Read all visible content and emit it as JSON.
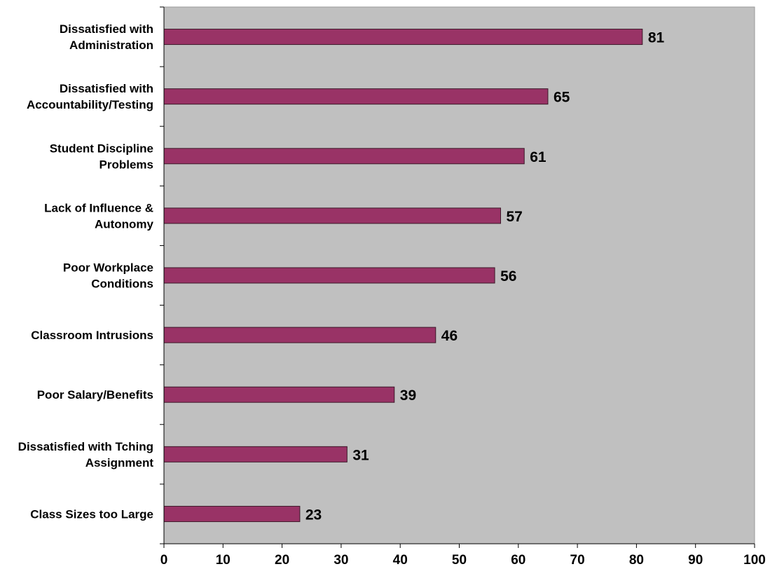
{
  "chart_data": {
    "type": "bar",
    "orientation": "horizontal",
    "categories": [
      [
        "Dissatisfied with",
        "Administration"
      ],
      [
        "Dissatisfied with",
        "Accountability/Testing"
      ],
      [
        "Student Discipline",
        "Problems"
      ],
      [
        "Lack of Influence &",
        "Autonomy"
      ],
      [
        "Poor Workplace",
        "Conditions"
      ],
      [
        "Classroom Intrusions"
      ],
      [
        "Poor Salary/Benefits"
      ],
      [
        "Dissatisfied with Tching",
        "Assignment"
      ],
      [
        "Class Sizes too Large"
      ]
    ],
    "values": [
      81,
      65,
      61,
      57,
      56,
      46,
      39,
      31,
      23
    ],
    "data_labels": [
      "81",
      "65",
      "61",
      "57",
      "56",
      "46",
      "39",
      "31",
      "23"
    ],
    "xlim": [
      0,
      100
    ],
    "x_ticks": [
      0,
      10,
      20,
      30,
      40,
      50,
      60,
      70,
      80,
      90,
      100
    ],
    "grid": false,
    "title": "",
    "xlabel": "",
    "ylabel": "",
    "colors": {
      "bar_fill": "#993366",
      "bar_stroke": "#3d1a2a",
      "plot_background": "#c0c0c0",
      "axis": "#000000"
    }
  }
}
